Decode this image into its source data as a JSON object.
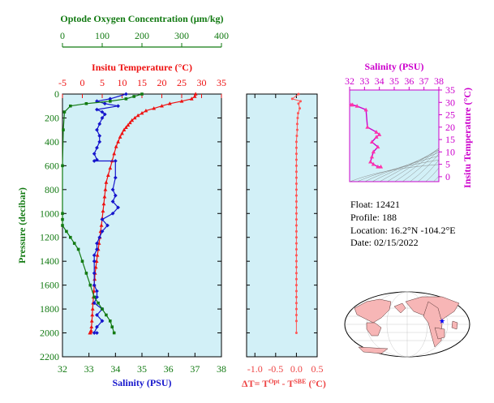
{
  "chart_data": [
    {
      "type": "line",
      "name": "profile",
      "top_axis_1": {
        "title": "Optode Oxygen Concentration (μm/kg)",
        "ticks": [
          0,
          100,
          200,
          300,
          400
        ],
        "lim": [
          0,
          400
        ],
        "color": "#127a12"
      },
      "top_axis_2": {
        "title": "Insitu Temperature (°C)",
        "ticks": [
          -5,
          0,
          5,
          10,
          15,
          20,
          25,
          30,
          35
        ],
        "lim": [
          -5,
          35
        ],
        "color": "#ee1111"
      },
      "bottom_axis": {
        "title": "Salinity (PSU)",
        "ticks": [
          32,
          33,
          34,
          35,
          36,
          37,
          38
        ],
        "lim": [
          32,
          38
        ],
        "color": "#1515cc"
      },
      "y_axis": {
        "title": "Pressure (decibar)",
        "ticks": [
          0,
          200,
          400,
          600,
          800,
          1000,
          1200,
          1400,
          1600,
          1800,
          2000,
          2200
        ],
        "lim": [
          0,
          2200
        ],
        "inverted": true
      },
      "series": [
        {
          "name": "temperature",
          "color": "#ee1111",
          "marker": "triangle",
          "x": [
            28.5,
            28.3,
            27.5,
            25,
            22,
            20,
            18,
            16,
            15,
            14,
            13.2,
            12.5,
            12,
            11.5,
            11,
            10.5,
            10,
            9.5,
            9,
            8.5,
            8,
            7.5,
            7,
            6.5,
            6,
            5.8,
            5.6,
            5.4,
            5.2,
            5,
            4.8,
            4.6,
            4.4,
            4.2,
            4,
            3.8,
            3.6,
            3.4,
            3.2,
            3.1,
            3,
            2.9,
            2.8,
            2.7,
            2.6,
            2.5,
            2.4,
            2.3,
            2.2,
            2.1,
            2.0,
            1.9
          ],
          "y": [
            0,
            20,
            40,
            60,
            80,
            100,
            120,
            140,
            160,
            180,
            200,
            220,
            240,
            260,
            280,
            300,
            330,
            360,
            400,
            440,
            500,
            560,
            620,
            680,
            740,
            800,
            860,
            920,
            980,
            1040,
            1100,
            1150,
            1200,
            1250,
            1300,
            1350,
            1400,
            1450,
            1500,
            1550,
            1600,
            1650,
            1700,
            1750,
            1800,
            1850,
            1900,
            1950,
            1980,
            1990,
            2000,
            2000
          ]
        },
        {
          "name": "salinity",
          "color": "#1515cc",
          "marker": "diamond",
          "x": [
            34.4,
            33.8,
            33.3,
            33.6,
            34.1,
            33.3,
            33.5,
            33.6,
            33.5,
            33.4,
            33.3,
            33.4,
            33.4,
            33.3,
            33.2,
            33.3,
            33.2,
            34.0,
            34.0,
            33.9,
            34.0,
            33.9,
            34.1,
            33.9,
            33.5,
            33.7,
            33.5,
            33.4,
            33.3,
            33.3,
            33.2,
            33.2,
            33.2,
            33.2,
            33.3,
            33.3,
            33.2,
            33.5,
            33.3,
            33.5,
            33.3,
            33.2,
            33.3
          ],
          "y": [
            0,
            40,
            60,
            80,
            100,
            130,
            150,
            170,
            200,
            250,
            300,
            350,
            400,
            450,
            500,
            550,
            560,
            560,
            700,
            800,
            850,
            900,
            950,
            1000,
            1050,
            1100,
            1150,
            1200,
            1250,
            1300,
            1350,
            1400,
            1500,
            1600,
            1650,
            1700,
            1750,
            1800,
            1850,
            1900,
            1950,
            2000,
            2000
          ]
        },
        {
          "name": "oxygen",
          "color": "#127a12",
          "marker": "square",
          "x": [
            200,
            180,
            160,
            120,
            60,
            20,
            5,
            2,
            0,
            0,
            0,
            0,
            10,
            20,
            30,
            40,
            50,
            60,
            70,
            80,
            90,
            100,
            110,
            120,
            125,
            130
          ],
          "y": [
            0,
            20,
            40,
            60,
            80,
            100,
            150,
            300,
            600,
            1000,
            1050,
            1100,
            1150,
            1200,
            1250,
            1300,
            1400,
            1500,
            1600,
            1700,
            1750,
            1800,
            1850,
            1900,
            1950,
            2000
          ]
        }
      ]
    },
    {
      "type": "scatter",
      "name": "delta_t",
      "x_axis": {
        "title": "ΔT= T",
        "ticks": [
          -1.0,
          -0.5,
          0.0,
          0.5
        ],
        "lim": [
          -1.2,
          0.5
        ],
        "color": "#ee4444"
      },
      "y_lim": [
        0,
        2200
      ],
      "series": [
        {
          "name": "deltaT",
          "color": "#ff5555",
          "x": [
            0.05,
            -0.1,
            0.1,
            0.05,
            0.08,
            0.04,
            0.03,
            0.02,
            0.02,
            0.01,
            0.0,
            0.0,
            0.0,
            0.0,
            0.0,
            0.0,
            0.0,
            0.0,
            0.0,
            0.0,
            0.0,
            0.0,
            0.0,
            0.0,
            0.0,
            0.0,
            0.0,
            0.0,
            0.0,
            0.0,
            0.0,
            0.0,
            0.0,
            0.0,
            0.0,
            0.0,
            0.0,
            0.0,
            0.0,
            0.0,
            0.0,
            0.0
          ],
          "y": [
            0,
            40,
            60,
            80,
            120,
            160,
            200,
            250,
            300,
            350,
            400,
            450,
            500,
            550,
            600,
            650,
            700,
            750,
            800,
            850,
            900,
            950,
            1000,
            1050,
            1100,
            1150,
            1200,
            1250,
            1300,
            1350,
            1400,
            1450,
            1500,
            1550,
            1600,
            1650,
            1700,
            1750,
            1800,
            1850,
            1900,
            2000
          ]
        }
      ]
    },
    {
      "type": "scatter",
      "name": "ts_diagram",
      "x_axis": {
        "title": "Salinity (PSU)",
        "ticks": [
          32,
          33,
          34,
          35,
          36,
          37,
          38
        ],
        "lim": [
          32,
          38
        ],
        "color": "#cc00cc"
      },
      "y_axis": {
        "title": "Insitu Temperature (°C)",
        "ticks": [
          0,
          5,
          10,
          15,
          20,
          25,
          30,
          35
        ],
        "lim": [
          -2,
          35
        ],
        "color": "#cc00cc"
      },
      "series": [
        {
          "name": "ts",
          "color": "#ff33aa",
          "x": [
            32.1,
            32.2,
            32.5,
            33.1,
            33.2,
            33.8,
            34.0,
            33.8,
            33.5,
            33.9,
            33.6,
            33.5,
            33.4,
            33.6,
            33.9,
            34.1
          ],
          "y": [
            29,
            29,
            28.5,
            27,
            20,
            18,
            17,
            16,
            14,
            12,
            10,
            8,
            6,
            5,
            4,
            4
          ]
        }
      ]
    }
  ],
  "axis_text": {
    "dt_title_sup1": "Opt",
    "dt_title_mid": " - T",
    "dt_title_sup2": "SBE",
    "dt_title_end": " (°C)"
  },
  "float_info": {
    "float": "Float:  12421",
    "profile": "Profile:  188",
    "location": "Location:  16.2°N  -104.2°E",
    "date": "Date:  02/15/2022"
  }
}
